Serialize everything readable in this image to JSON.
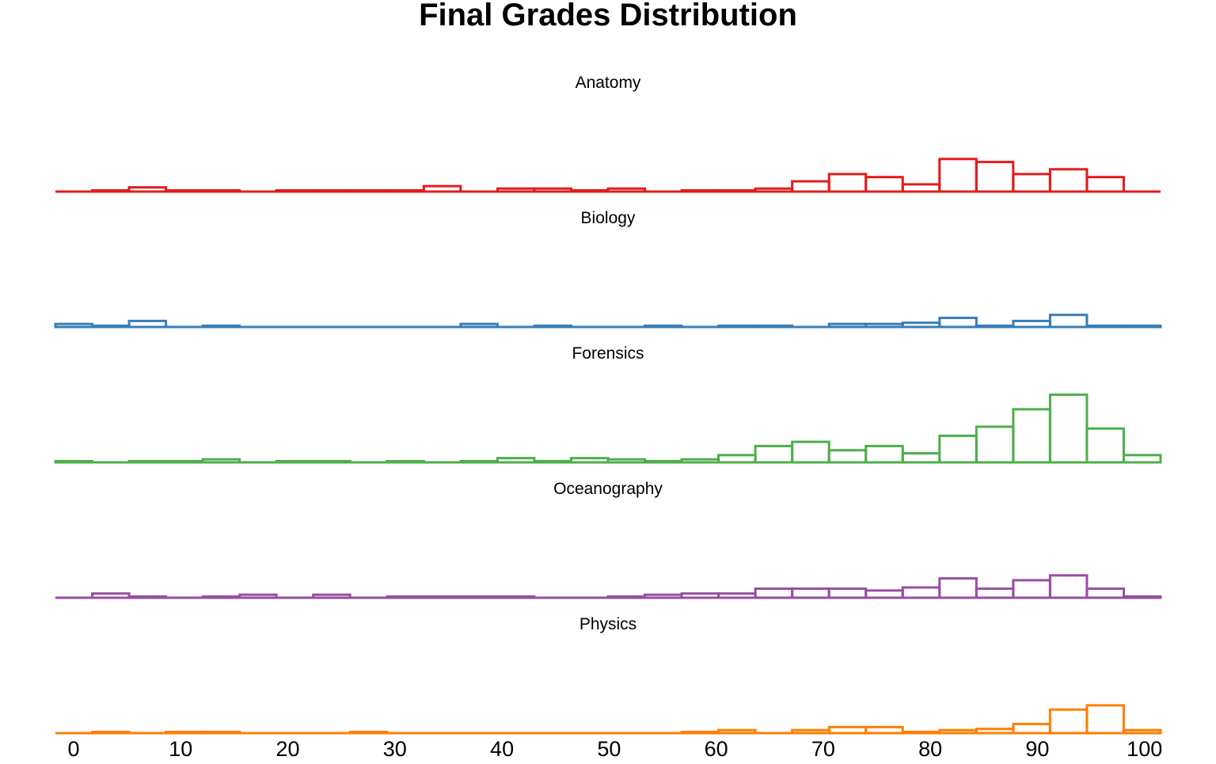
{
  "chart_data": {
    "type": "histogram",
    "title": "Final Grades Distribution",
    "xlabel": "",
    "ylabel": "",
    "xlim": [
      -1.7,
      101.5
    ],
    "ylim": [
      0,
      0.16
    ],
    "xticks": [
      0,
      10,
      20,
      30,
      40,
      50,
      60,
      70,
      80,
      90,
      100
    ],
    "bin_edges": [
      -1.7,
      1.74,
      5.18,
      8.62,
      12.06,
      15.5,
      18.94,
      22.38,
      25.82,
      29.26,
      32.7,
      36.14,
      39.58,
      43.02,
      46.46,
      49.9,
      53.34,
      56.78,
      60.22,
      63.66,
      67.1,
      70.54,
      73.98,
      77.42,
      80.86,
      84.3,
      87.74,
      91.18,
      94.62,
      98.06,
      101.5
    ],
    "grid": false,
    "legend": "none",
    "series": [
      {
        "name": "Anatomy",
        "color": "#e41a1c",
        "values": [
          0,
          0.002,
          0.007,
          0.002,
          0.002,
          0,
          0.002,
          0.002,
          0.002,
          0.002,
          0.009,
          0,
          0.005,
          0.005,
          0.002,
          0.005,
          0,
          0.002,
          0.002,
          0.005,
          0.017,
          0.029,
          0.024,
          0.012,
          0.054,
          0.049,
          0.029,
          0.037,
          0.024,
          0
        ]
      },
      {
        "name": "Biology",
        "color": "#377eb8",
        "values": [
          0.005,
          0.002,
          0.01,
          0,
          0.002,
          0,
          0,
          0,
          0,
          0,
          0,
          0.005,
          0,
          0.002,
          0,
          0,
          0.002,
          0,
          0.002,
          0.002,
          0,
          0.005,
          0.005,
          0.007,
          0.015,
          0.002,
          0.01,
          0.02,
          0.002,
          0.002
        ]
      },
      {
        "name": "Forensics",
        "color": "#4daf4a",
        "values": [
          0.002,
          0,
          0.002,
          0.002,
          0.005,
          0,
          0.002,
          0.002,
          0,
          0.002,
          0,
          0.002,
          0.007,
          0.002,
          0.007,
          0.005,
          0.002,
          0.005,
          0.012,
          0.027,
          0.034,
          0.02,
          0.027,
          0.015,
          0.044,
          0.059,
          0.088,
          0.112,
          0.056,
          0.012
        ]
      },
      {
        "name": "Oceanography",
        "color": "#984ea3",
        "values": [
          0,
          0.007,
          0.002,
          0,
          0.002,
          0.005,
          0,
          0.005,
          0,
          0.002,
          0.002,
          0.002,
          0.002,
          0,
          0,
          0.002,
          0.005,
          0.007,
          0.007,
          0.015,
          0.015,
          0.015,
          0.012,
          0.017,
          0.032,
          0.015,
          0.029,
          0.037,
          0.015,
          0.002
        ]
      },
      {
        "name": "Physics",
        "color": "#ff7f00",
        "values": [
          0,
          0.002,
          0,
          0.002,
          0.002,
          0,
          0,
          0,
          0.002,
          0,
          0,
          0,
          0,
          0,
          0,
          0,
          0,
          0.002,
          0.005,
          0,
          0.005,
          0.01,
          0.01,
          0.002,
          0.005,
          0.007,
          0.015,
          0.039,
          0.046,
          0.005
        ]
      }
    ]
  }
}
